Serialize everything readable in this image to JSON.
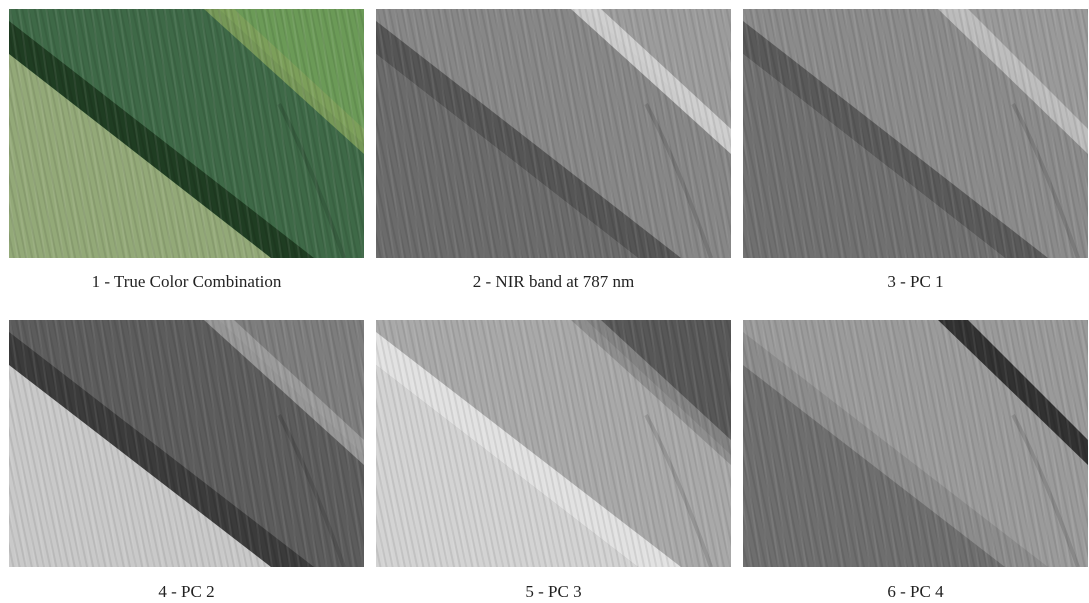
{
  "panels": [
    {
      "caption": "1 - True Color Combination"
    },
    {
      "caption": "2 - NIR band at 787 nm"
    },
    {
      "caption": "3 - PC 1"
    },
    {
      "caption": "4 - PC 2"
    },
    {
      "caption": "5 - PC 3"
    },
    {
      "caption": "6 - PC 4"
    }
  ]
}
